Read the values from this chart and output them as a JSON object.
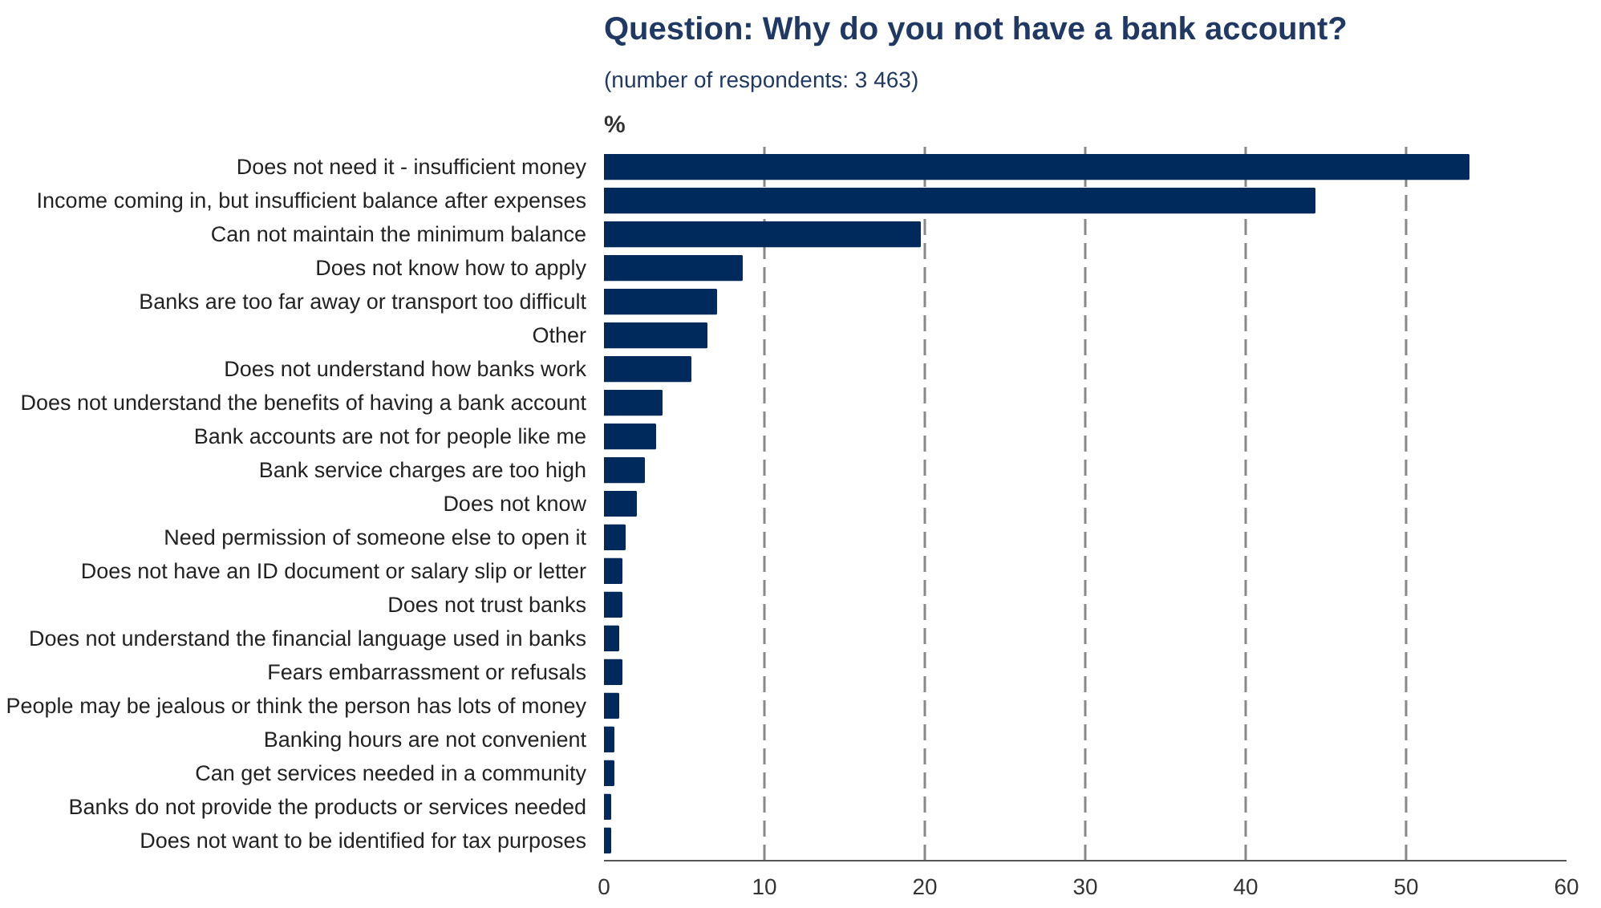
{
  "chart_data": {
    "type": "bar",
    "orientation": "horizontal",
    "title": "Question: Why do you not have a bank account?",
    "subtitle": "(number of respondents:  3 463)",
    "xlabel": "%",
    "categories": [
      "Does not need it - insufficient money",
      "Income coming in, but insufficient balance after expenses",
      "Can not maintain the minimum balance",
      "Does not know how to apply",
      "Banks are too far away or transport too difficult",
      "Other",
      "Does not understand how banks work",
      "Does not understand the benefits of having a bank account",
      "Bank accounts are not for people like me",
      "Bank service charges are too high",
      "Does not know",
      "Need permission of someone else to open it",
      "Does not have an ID document or salary slip or letter",
      "Does not trust banks",
      "Does not understand the financial language used in banks",
      "Fears embarrassment or refusals",
      "People may be jealous or think the person has lots of money",
      "Banking hours are not convenient",
      "Can get services needed in a community",
      "Banks do not provide the products or services needed",
      "Does not want to be identified for tax purposes"
    ],
    "values": [
      53.9,
      44.3,
      19.7,
      8.6,
      7.0,
      6.4,
      5.4,
      3.6,
      3.2,
      2.5,
      2.0,
      1.3,
      1.1,
      1.1,
      0.9,
      1.1,
      0.9,
      0.6,
      0.6,
      0.4,
      0.4
    ],
    "color": "#002a5c",
    "xlim": [
      0,
      60
    ],
    "xticks": [
      0,
      10,
      20,
      30,
      40,
      50,
      60
    ],
    "grid": "x"
  }
}
